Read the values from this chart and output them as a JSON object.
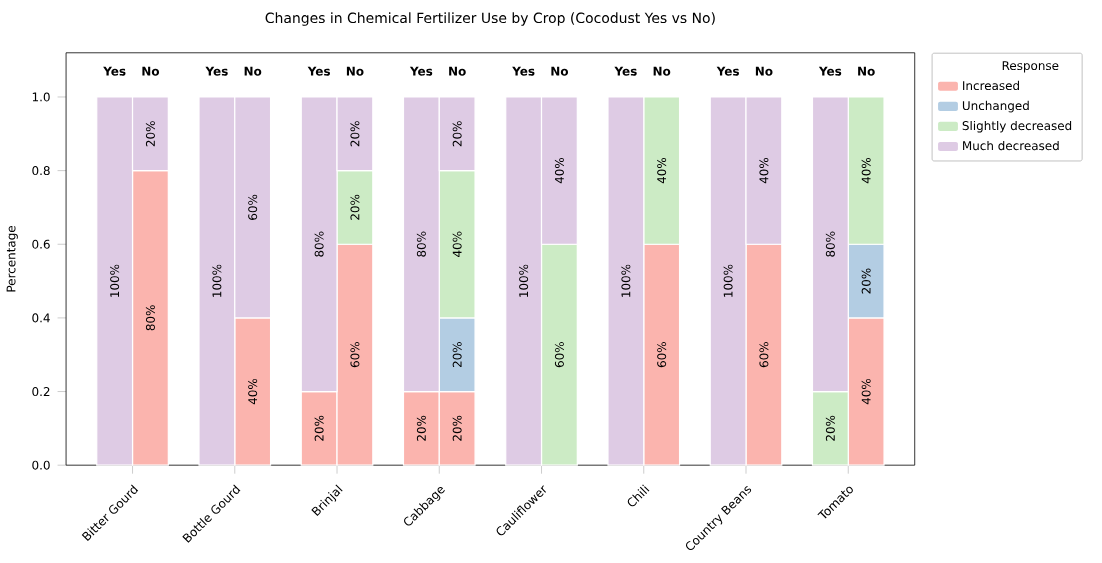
{
  "chart_data": {
    "type": "bar",
    "stacked": true,
    "title": "Changes in Chemical Fertilizer Use by Crop (Cocodust Yes vs No)",
    "ylabel": "Percentage",
    "legend_title": "Response",
    "legend": "top right",
    "categories": [
      "Yes",
      "No",
      "Yes",
      "No",
      "Yes",
      "No",
      "Yes",
      "No",
      "Yes",
      "No",
      "Yes",
      "No",
      "Yes",
      "No",
      "Yes",
      "No"
    ],
    "annotations": [
      "Bitter Gourd",
      "Bottle Gourd",
      "Brinjal",
      "Cabbage",
      "Cauliflower",
      "Chili",
      "Country Beans",
      "Tomato"
    ],
    "ylim": [
      0,
      1.12
    ],
    "yticks": [
      {
        "value": 0,
        "label": "0.0"
      },
      {
        "value": 0.2,
        "label": "0.2"
      },
      {
        "value": 0.4,
        "label": "0.4"
      },
      {
        "value": 0.6,
        "label": "0.6"
      },
      {
        "value": 0.8,
        "label": "0.8"
      },
      {
        "value": 1,
        "label": "1.0"
      }
    ],
    "grid": false,
    "series": [
      {
        "name": "Increased",
        "color": "#fbb4ae",
        "values": [
          null,
          0.8,
          null,
          0.4,
          0.2,
          0.6,
          0.2,
          0.2,
          null,
          null,
          null,
          0.6,
          null,
          0.6,
          null,
          0.4
        ],
        "value_labels": [
          null,
          "80%",
          null,
          "40%",
          "20%",
          "60%",
          "20%",
          "20%",
          null,
          null,
          null,
          "60%",
          null,
          "60%",
          null,
          "40%"
        ]
      },
      {
        "name": "Unchanged",
        "color": "#b3cde3",
        "values": [
          null,
          null,
          null,
          null,
          null,
          null,
          null,
          0.2,
          null,
          null,
          null,
          null,
          null,
          null,
          null,
          0.2
        ],
        "value_labels": [
          null,
          null,
          null,
          null,
          null,
          null,
          null,
          "20%",
          null,
          null,
          null,
          null,
          null,
          null,
          null,
          "20%"
        ]
      },
      {
        "name": "Slightly decreased",
        "color": "#ccebc5",
        "values": [
          null,
          null,
          null,
          null,
          null,
          0.2,
          null,
          0.4,
          null,
          0.6,
          null,
          0.4,
          null,
          null,
          0.2,
          0.4
        ],
        "value_labels": [
          null,
          null,
          null,
          null,
          null,
          "20%",
          null,
          "40%",
          null,
          "60%",
          null,
          "40%",
          null,
          null,
          "20%",
          "40%"
        ]
      },
      {
        "name": "Much decreased",
        "color": "#decbe4",
        "values": [
          1.0,
          0.2,
          1.0,
          0.6,
          0.8,
          0.2,
          0.8,
          0.2,
          1.0,
          0.4,
          1.0,
          null,
          1.0,
          0.4,
          0.8,
          null
        ],
        "value_labels": [
          "100%",
          "20%",
          "100%",
          "60%",
          "80%",
          "20%",
          "80%",
          "20%",
          "100%",
          "40%",
          "100%",
          null,
          "100%",
          "40%",
          "80%",
          null
        ]
      }
    ]
  }
}
